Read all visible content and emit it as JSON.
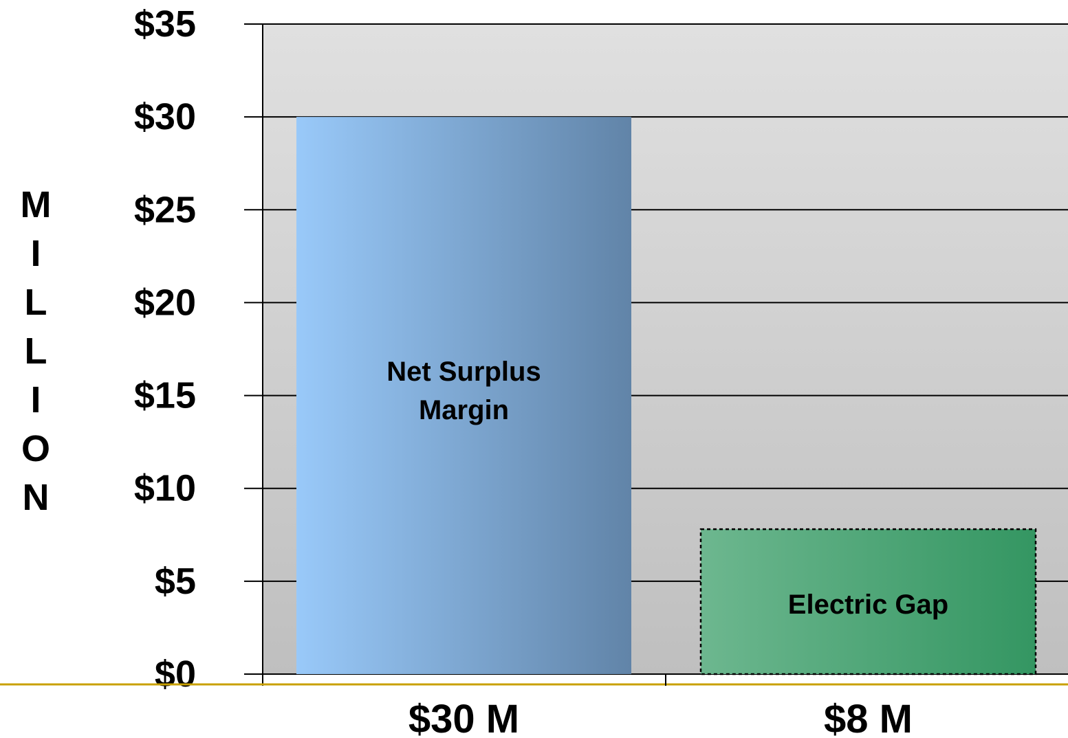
{
  "chart_data": {
    "type": "bar",
    "categories": [
      "$30 M",
      "$8 M"
    ],
    "values": [
      30,
      7.8
    ],
    "bar_labels": [
      [
        "Net Surplus",
        "Margin"
      ],
      [
        "Electric Gap"
      ]
    ],
    "ylabel": "MILLION",
    "ylim": [
      0,
      35
    ],
    "yticks": [
      0,
      5,
      10,
      15,
      20,
      25,
      30,
      35
    ],
    "ytick_labels": [
      "$0",
      "$5",
      "$10",
      "$15",
      "$20",
      "$25",
      "$30",
      "$35"
    ],
    "grid": true,
    "colors": {
      "bar1_start": "#99c9f9",
      "bar1_end": "#6184a8",
      "bar2_start": "#6db78f",
      "bar2_end": "#349662",
      "plot_bg_top": "#e0e0e0",
      "plot_bg_bottom": "#bfbfbf",
      "baseline": "#c8a000"
    }
  }
}
